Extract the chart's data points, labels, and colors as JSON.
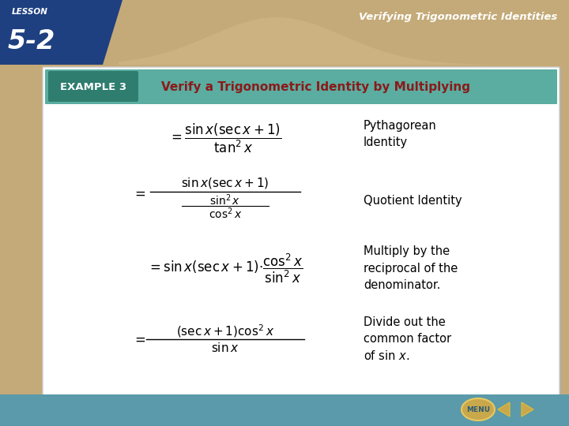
{
  "bg_color": "#c4aa78",
  "white_bg": "#ffffff",
  "top_right_text": "Verifying Trigonometric Identities",
  "lesson_label": "LESSON",
  "lesson_number": "5-2",
  "lesson_box_color": "#1a3a6b",
  "lesson_box_outline": "#2a5298",
  "top_banner_tan": "#c4aa78",
  "top_wave_color": "#b8a06a",
  "example_label": "EXAMPLE 3",
  "example_box_color": "#2e7d6e",
  "example_header_color": "#5aada0",
  "example_title": "Verify a Trigonometric Identity by Multiplying",
  "title_color": "#8b1a1a",
  "eq1": "$= \\dfrac{\\sin x(\\sec x + 1)}{\\tan^2 x}$",
  "eq2_num": "$\\sin x(\\sec x + 1)$",
  "eq2_den_num": "$\\sin^2 x$",
  "eq2_den_den": "$\\cos^2 x$",
  "eq3": "$= \\sin x(\\sec x + 1){\\cdot}\\dfrac{\\cos^2 x}{\\sin^2 x}$",
  "eq4_num": "$(\\sec x + 1)\\cos^2 x$",
  "eq4_den": "$\\sin x$",
  "label1": "Pythagorean\nIdentity",
  "label2": "Quotient Identity",
  "label3": "Multiply by the\nreciprocal of the\ndenominator.",
  "label4": "Divide out the\ncommon factor\nof sin $x$.",
  "nav_teal": "#5a9aaa",
  "nav_gold": "#c8a84b",
  "nav_arrow_color": "#c8a84b",
  "bottom_strip_color": "#5a9aaa"
}
